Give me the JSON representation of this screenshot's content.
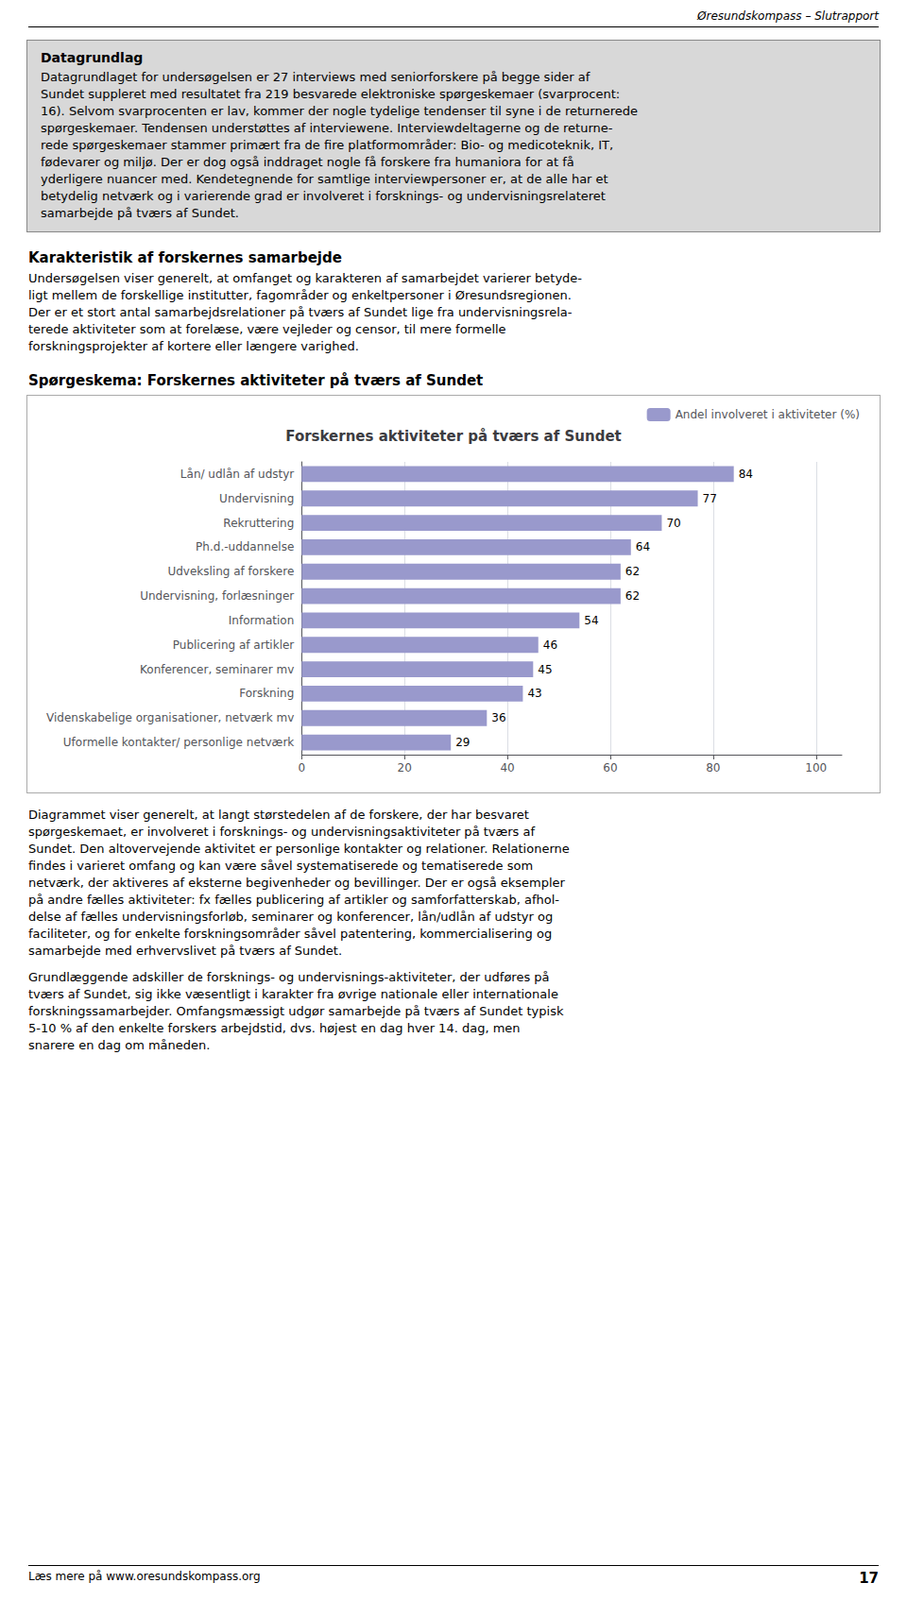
{
  "page": {
    "header": "Øresundskompass – Slutrapport",
    "box_title": "Datagrundlag",
    "box_lines": [
      "Datagrundlaget for undersøgelsen er 27 interviews med seniorforskere på begge sider af",
      "Sundet suppleret med resultatet fra 219 besvarede elektroniske spørgeskemaer (svarprocent:",
      "16). Selvom svarprocenten er lav, kommer der nogle tydelige tendenser til syne i de returnerede",
      "spørgeskemaer. Tendensen understøttes af interviewene. Interviewdeltagerne og de returne-",
      "rede spørgeskemaer stammer primært fra de fire platformområder: Bio- og medicoteknik, IT,",
      "fødevarer og miljø. Der er dog også inddraget nogle få forskere fra humaniora for at få",
      "yderligere nuancer med. Kendetegnende for samtlige interviewpersoner er, at de alle har et",
      "betydelig netværk og i varierende grad er involveret i forsknings- og undervisningsrelateret",
      "samarbejde på tværs af Sundet."
    ],
    "section2_title": "Karakteristik af forskernes samarbejde",
    "section2_lines": [
      "Undersøgelsen viser generelt, at omfanget og karakteren af samarbejdet varierer betyde-",
      "ligt mellem de forskellige institutter, fagområder og enkeltpersoner i Øresundsregionen.",
      "Der er et stort antal samarbejdsrelationer på tværs af Sundet lige fra undervisningsrela-",
      "terede aktiviteter som at forelæse, være vejleder og censor, til mere formelle",
      "forskningsprojekter af kortere eller længere varighed."
    ],
    "chart_section_label": "Spørgeskema: Forskernes aktiviteter på tværs af Sundet",
    "section3_lines": [
      "Diagrammet viser generelt, at langt størstedelen af de forskere, der har besvaret",
      "spørgeskemaet, er involveret i forsknings- og undervisningsaktiviteter på tværs af",
      "Sundet. Den altovervejende aktivitet er personlige kontakter og relationer. Relationerne",
      "findes i varieret omfang og kan være såvel systematiserede og tematiserede som",
      "netværk, der aktiveres af eksterne begivenheder og bevillinger. Der er også eksempler",
      "på andre fælles aktiviteter: fx fælles publicering af artikler og samforfatterskab, afhol-",
      "delse af fælles undervisningsforløb, seminarer og konferencer, lån/udlån af udstyr og",
      "faciliteter, og for enkelte forskningsområder såvel patentering, kommercialisering og",
      "samarbejde med erhvervslivet på tværs af Sundet."
    ],
    "section4_lines": [
      "Grundlæggende adskiller de forsknings- og undervisnings-aktiviteter, der udføres på",
      "tværs af Sundet, sig ikke væsentligt i karakter fra øvrige nationale eller internationale",
      "forskningssamarbejder. Omfangsmæssigt udgør samarbejde på tværs af Sundet typisk",
      "5-10 % af den enkelte forskers arbejdstid, dvs. højest en dag hver 14. dag, men",
      "snarere en dag om måneden."
    ],
    "footer_text": "Læs mere på www.oresundskompass.org",
    "footer_page": "17"
  },
  "chart_data": {
    "type": "bar",
    "orientation": "horizontal",
    "title": "Forskernes aktiviteter på tværs af Sundet",
    "categories": [
      "Uformelle kontakter/ personlige netværk",
      "Videnskabelige organisationer, netværk mv",
      "Forskning",
      "Konferencer, seminarer mv",
      "Publicering af artikler",
      "Information",
      "Undervisning, forlæsninger",
      "Udveksling af forskere",
      "Ph.d.-uddannelse",
      "Rekruttering",
      "Undervisning",
      "Lån/ udlån af udstyr"
    ],
    "series": [
      {
        "name": "Andel involveret i aktiviteter (%)",
        "color": "#9999cc",
        "values": [
          29,
          36,
          43,
          45,
          46,
          54,
          62,
          62,
          64,
          70,
          77,
          84
        ]
      }
    ],
    "xlim": [
      0,
      105
    ],
    "xticks": [
      0,
      20,
      40,
      60,
      80,
      100
    ],
    "grid": true,
    "data_labels": true,
    "legend": "upper right"
  }
}
